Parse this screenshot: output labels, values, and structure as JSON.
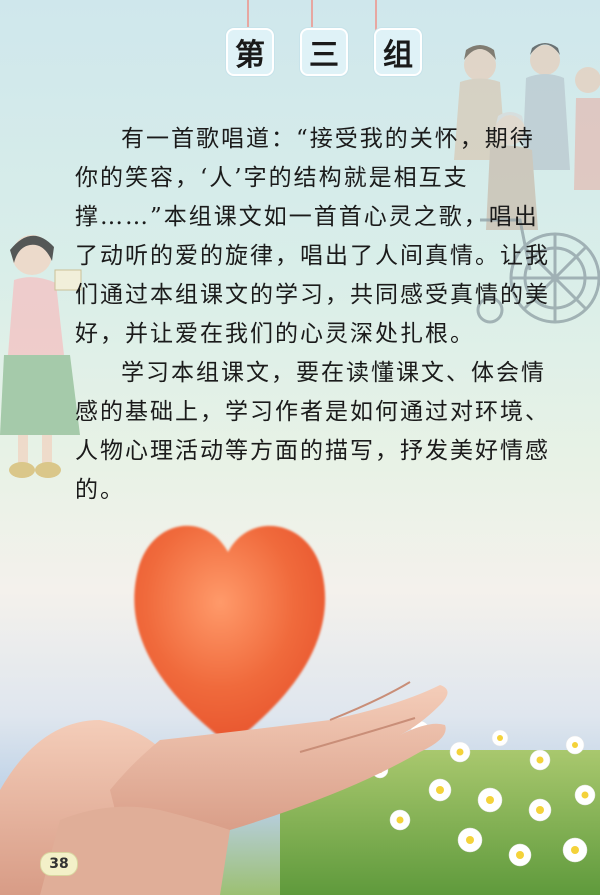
{
  "title_chars": [
    "第",
    "三",
    "组"
  ],
  "paragraphs": [
    "有一首歌唱道：“接受我的关怀，期待你的笑容，‘人’字的结构就是相互支撑……”本组课文如一首首心灵之歌，唱出了动听的爱的旋律，唱出了人间真情。让我们通过本组课文的学习，共同感受真情的美好，并让爱在我们的心灵深处扎根。",
    "学习本组课文，要在读懂课文、体会情感的基础上，学习作者是如何通过对环境、人物心理活动等方面的描写，抒发美好情感的。"
  ],
  "page_number": "38",
  "colors": {
    "heart": "#f06a3c",
    "tile_bg": "#dff2f7",
    "text": "#1b1b1b"
  },
  "icons": {
    "illustration_child": "child-holding-book-illustration",
    "illustration_family": "family-with-wheelchair-illustration",
    "heart": "heart-icon",
    "hands": "open-hands-illustration",
    "flowers": "daisy-field-illustration"
  }
}
